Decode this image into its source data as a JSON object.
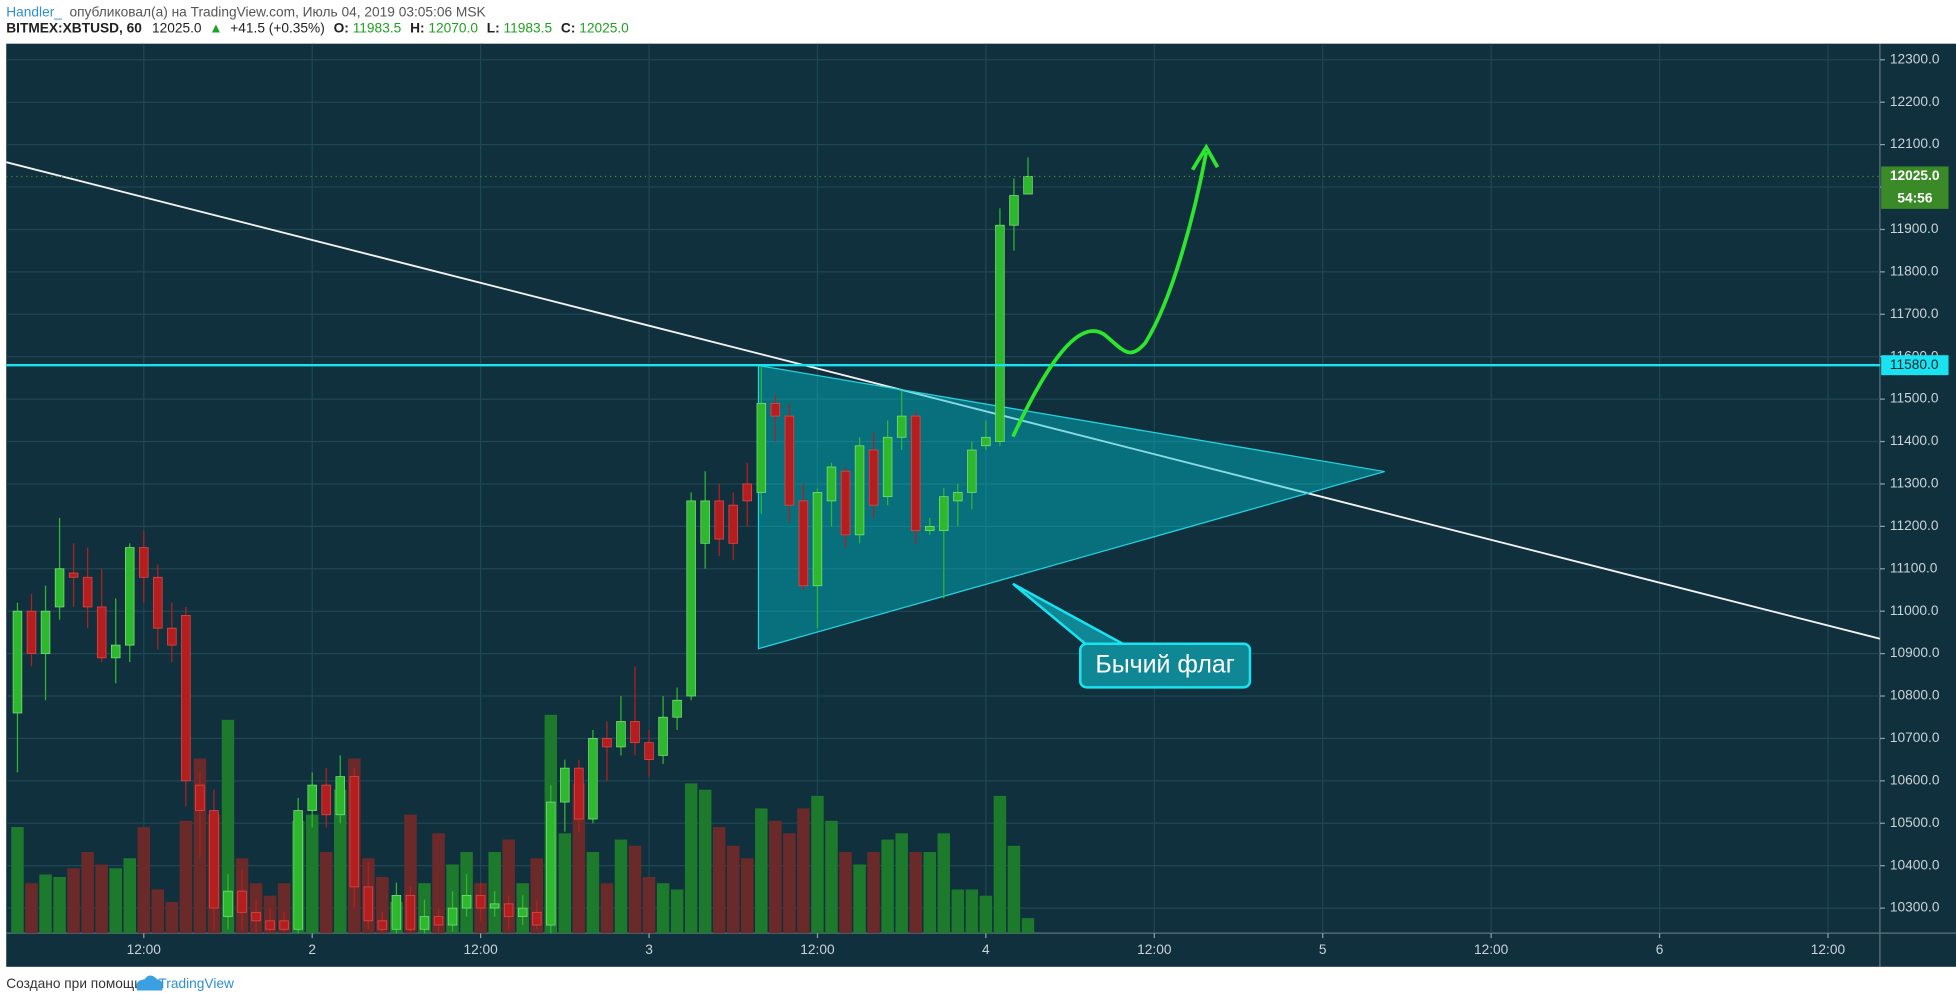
{
  "header": {
    "author": "Handler_",
    "published": "опубликовал(а) на TradingView.com, Июль 04, 2019 03:05:06 MSK",
    "symbol": "BITMEX:XBTUSD, 60",
    "last": "12025.0",
    "change_arrow": "▲",
    "change": "+41.5 (+0.35%)",
    "o_label": "O:",
    "open": "11983.5",
    "h_label": "H:",
    "high": "12070.0",
    "l_label": "L:",
    "low": "11983.5",
    "c_label": "C:",
    "close": "12025.0"
  },
  "chart_data": {
    "type": "candlestick",
    "x": [
      3,
      4,
      5,
      6,
      7,
      8,
      9,
      10,
      11,
      12,
      13,
      14,
      15,
      16,
      17,
      18,
      19,
      20,
      21,
      22,
      23,
      24,
      25,
      26,
      27,
      28,
      29,
      30,
      31,
      32,
      33,
      34,
      35,
      36,
      37,
      38,
      39,
      40,
      41,
      42,
      43,
      44,
      45,
      46,
      47,
      48,
      49,
      50,
      51,
      52,
      53,
      54,
      55,
      56,
      57,
      58,
      59,
      60,
      61,
      62,
      63,
      64,
      65,
      66,
      67,
      68,
      69,
      70,
      71,
      72,
      73,
      74,
      75
    ],
    "open": [
      10760,
      11000,
      10900,
      11010,
      11090,
      11080,
      11010,
      10890,
      10920,
      11150,
      11080,
      10960,
      10990,
      10590,
      10530,
      10280,
      10340,
      10290,
      10270,
      10270,
      10250,
      10530,
      10590,
      10520,
      10610,
      10350,
      10270,
      10250,
      10330,
      10250,
      10280,
      10260,
      10300,
      10330,
      10300,
      10310,
      10280,
      10290,
      10260,
      10550,
      10630,
      10510,
      10700,
      10680,
      10740,
      10690,
      10660,
      10750,
      10800,
      11160,
      11260,
      11250,
      11300,
      11280,
      11490,
      11460,
      11260,
      11060,
      11260,
      11330,
      11180,
      11380,
      11270,
      11410,
      11460,
      11190,
      11190,
      11260,
      11280,
      11390,
      11400,
      11910,
      11983.5
    ],
    "high": [
      11020,
      11040,
      11060,
      11220,
      11160,
      11150,
      11100,
      11030,
      11160,
      11190,
      11110,
      11020,
      11010,
      10620,
      10580,
      10380,
      10390,
      10320,
      10300,
      10290,
      10560,
      10620,
      10630,
      10660,
      10630,
      10410,
      10290,
      10360,
      10350,
      10320,
      10300,
      10340,
      10380,
      10360,
      10340,
      10330,
      10330,
      10320,
      10590,
      10650,
      10650,
      10720,
      10740,
      10800,
      10870,
      10720,
      10800,
      10820,
      11280,
      11330,
      11300,
      11280,
      11350,
      11580,
      11510,
      11490,
      11300,
      11290,
      11350,
      11340,
      11410,
      11420,
      11450,
      11520,
      11470,
      11220,
      11290,
      11300,
      11400,
      11450,
      11950,
      12020,
      12070
    ],
    "low": [
      10620,
      10870,
      10790,
      10980,
      11010,
      10960,
      10880,
      10830,
      10880,
      11020,
      10910,
      10880,
      10540,
      10420,
      10250,
      10250,
      10250,
      10240,
      10240,
      10245,
      10240,
      10490,
      10490,
      10500,
      10300,
      10250,
      10240,
      10240,
      10240,
      10240,
      10240,
      10245,
      10280,
      10270,
      10280,
      10250,
      10260,
      10250,
      10240,
      10480,
      10480,
      10500,
      10600,
      10660,
      10660,
      10610,
      10640,
      10720,
      10790,
      11100,
      11130,
      11120,
      11200,
      11230,
      11400,
      11210,
      11050,
      10960,
      11200,
      11150,
      11160,
      11220,
      11250,
      11380,
      11160,
      11180,
      11030,
      11200,
      11240,
      11380,
      11390,
      11850,
      11983.5
    ],
    "close": [
      11000,
      10900,
      11000,
      11100,
      11080,
      11010,
      10890,
      10920,
      11150,
      11080,
      10960,
      10920,
      10600,
      10530,
      10300,
      10340,
      10290,
      10270,
      10250,
      10250,
      10530,
      10590,
      10520,
      10610,
      10350,
      10270,
      10250,
      10330,
      10250,
      10280,
      10260,
      10300,
      10330,
      10300,
      10310,
      10280,
      10300,
      10260,
      10550,
      10630,
      10510,
      10700,
      10680,
      10740,
      10690,
      10650,
      10750,
      10790,
      11260,
      11260,
      11170,
      11160,
      11260,
      11490,
      11460,
      11250,
      11060,
      11280,
      11340,
      11180,
      11390,
      11250,
      11410,
      11460,
      11190,
      11200,
      11270,
      11280,
      11380,
      11410,
      11910,
      11980,
      12025
    ],
    "volume": [
      85,
      40,
      47,
      45,
      52,
      65,
      55,
      52,
      60,
      85,
      35,
      25,
      90,
      140,
      95,
      171,
      60,
      40,
      30,
      40,
      90,
      95,
      65,
      115,
      140,
      60,
      45,
      25,
      95,
      40,
      80,
      55,
      65,
      40,
      65,
      75,
      40,
      60,
      175,
      80,
      120,
      65,
      40,
      75,
      70,
      45,
      40,
      35,
      120,
      115,
      85,
      70,
      60,
      100,
      90,
      80,
      100,
      110,
      90,
      65,
      55,
      65,
      75,
      80,
      65,
      65,
      80,
      35,
      35,
      30,
      110,
      70,
      12
    ],
    "up_color": "#2eb82e",
    "down_color": "#b51e1e",
    "volume_up_color": "#1d7a2c",
    "volume_down_color": "#6b2a2a",
    "xlim": [
      2.2,
      135.7
    ],
    "xticks": [
      {
        "value": 12,
        "label": "12:00"
      },
      {
        "value": 24,
        "label": "2"
      },
      {
        "value": 36,
        "label": "12:00"
      },
      {
        "value": 48,
        "label": "3"
      },
      {
        "value": 60,
        "label": "12:00"
      },
      {
        "value": 72,
        "label": "4"
      },
      {
        "value": 84,
        "label": "12:00"
      },
      {
        "value": 96,
        "label": "5"
      },
      {
        "value": 108,
        "label": "12:00"
      },
      {
        "value": 120,
        "label": "6"
      },
      {
        "value": 132,
        "label": "12:00"
      }
    ],
    "ylim": [
      10241,
      12338
    ],
    "yticks": [
      {
        "value": 10300,
        "label": "10300.0"
      },
      {
        "value": 10400,
        "label": "10400.0"
      },
      {
        "value": 10500,
        "label": "10500.0"
      },
      {
        "value": 10600,
        "label": "10600.0"
      },
      {
        "value": 10700,
        "label": "10700.0"
      },
      {
        "value": 10800,
        "label": "10800.0"
      },
      {
        "value": 10900,
        "label": "10900.0"
      },
      {
        "value": 11000,
        "label": "11000.0"
      },
      {
        "value": 11100,
        "label": "11100.0"
      },
      {
        "value": 11200,
        "label": "11200.0"
      },
      {
        "value": 11300,
        "label": "11300.0"
      },
      {
        "value": 11400,
        "label": "11400.0"
      },
      {
        "value": 11500,
        "label": "11500.0"
      },
      {
        "value": 11600,
        "label": "11600.0"
      },
      {
        "value": 11700,
        "label": "11700.0"
      },
      {
        "value": 11800,
        "label": "11800.0"
      },
      {
        "value": 11900,
        "label": "11900.0"
      },
      {
        "value": 12000,
        "label": "12000.0"
      },
      {
        "value": 12100,
        "label": "12100.0"
      },
      {
        "value": 12200,
        "label": "12200.0"
      },
      {
        "value": 12300,
        "label": "12300.0"
      }
    ],
    "grid": true,
    "price_tag": {
      "value": 12025,
      "label": "12025.0"
    },
    "countdown": "54:56",
    "level": {
      "value": 11580,
      "label": "11580.0"
    },
    "level_color": "#19e3f0",
    "annotation": "Бычий флаг"
  },
  "footer": {
    "text": "Создано при помощи",
    "brand": "TradingView"
  }
}
